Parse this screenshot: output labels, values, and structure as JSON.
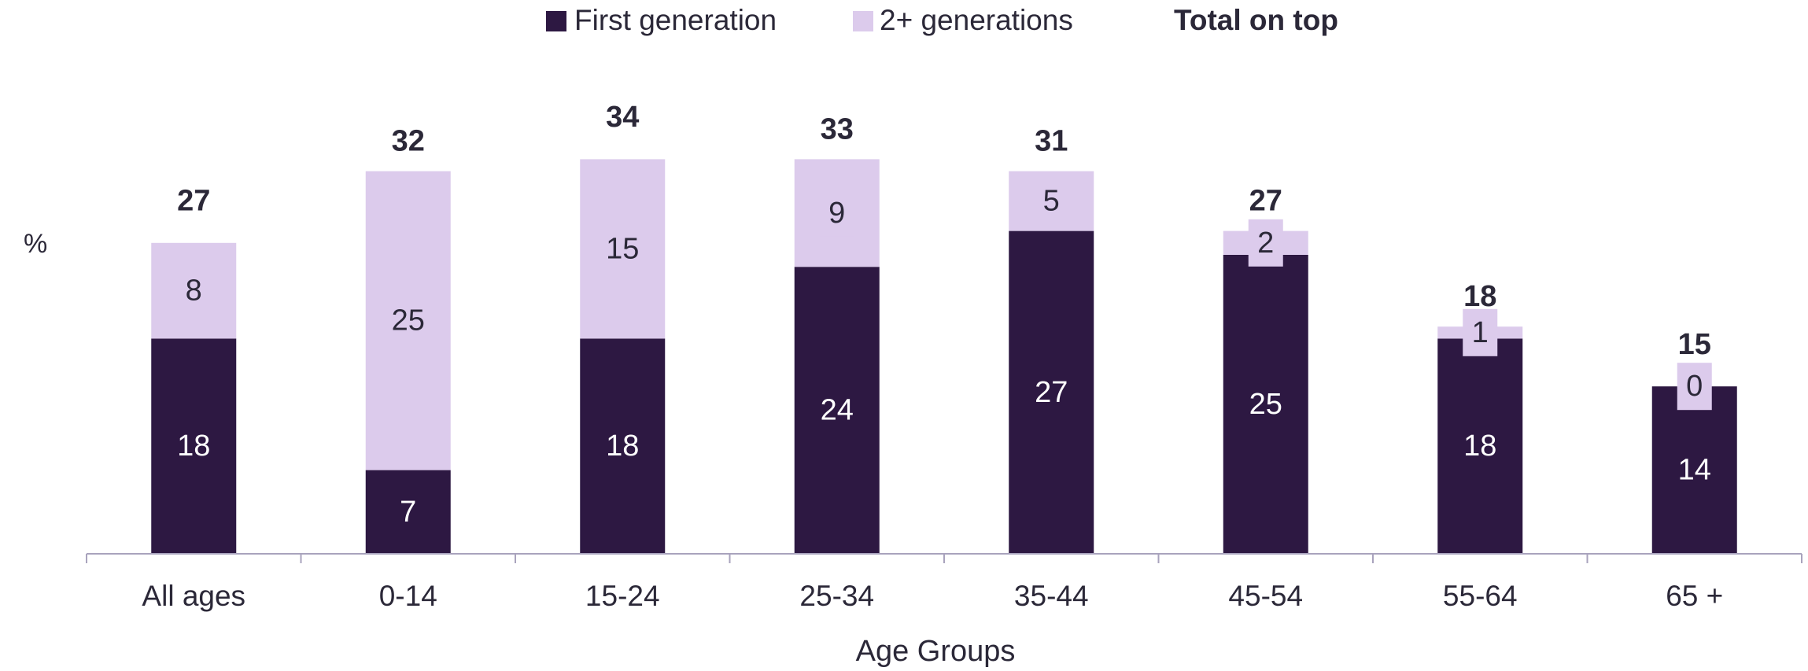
{
  "chart_data": {
    "type": "stacked_bar",
    "legend_note": "Total on top",
    "y_label": "%",
    "x_label": "Age Groups",
    "categories": [
      "All ages",
      "0-14",
      "15-24",
      "25-34",
      "35-44",
      "45-54",
      "55-64",
      "65 +"
    ],
    "series": [
      {
        "name": "First generation",
        "color": "#2d1842",
        "values": [
          18,
          7,
          18,
          24,
          27,
          25,
          18,
          14
        ]
      },
      {
        "name": "2+ generations",
        "color": "#dccbec",
        "values": [
          8,
          25,
          15,
          9,
          5,
          2,
          1,
          0
        ]
      }
    ],
    "totals": [
      27,
      32,
      34,
      33,
      31,
      27,
      18,
      15
    ],
    "ylim": [
      0,
      40
    ],
    "legend_position": "top"
  }
}
